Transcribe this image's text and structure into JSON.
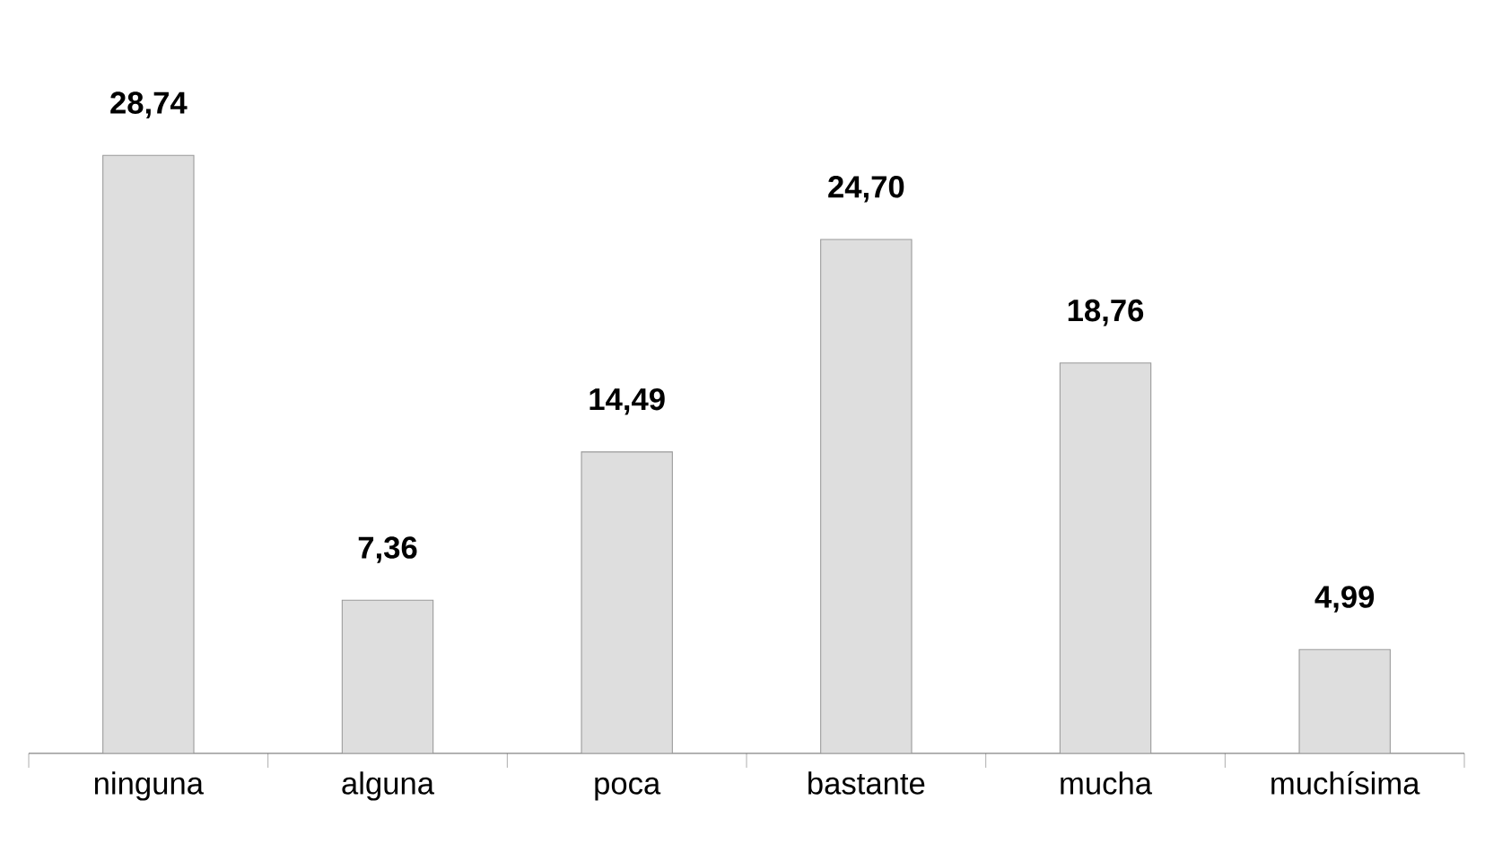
{
  "chart_data": {
    "type": "bar",
    "categories": [
      "ninguna",
      "alguna",
      "poca",
      "bastante",
      "mucha",
      "muchísima"
    ],
    "values": [
      28.74,
      7.36,
      14.49,
      24.7,
      18.76,
      4.99
    ],
    "value_labels": [
      "28,74",
      "7,36",
      "14,49",
      "24,70",
      "18,76",
      "4,99"
    ],
    "color": "#dedede"
  }
}
